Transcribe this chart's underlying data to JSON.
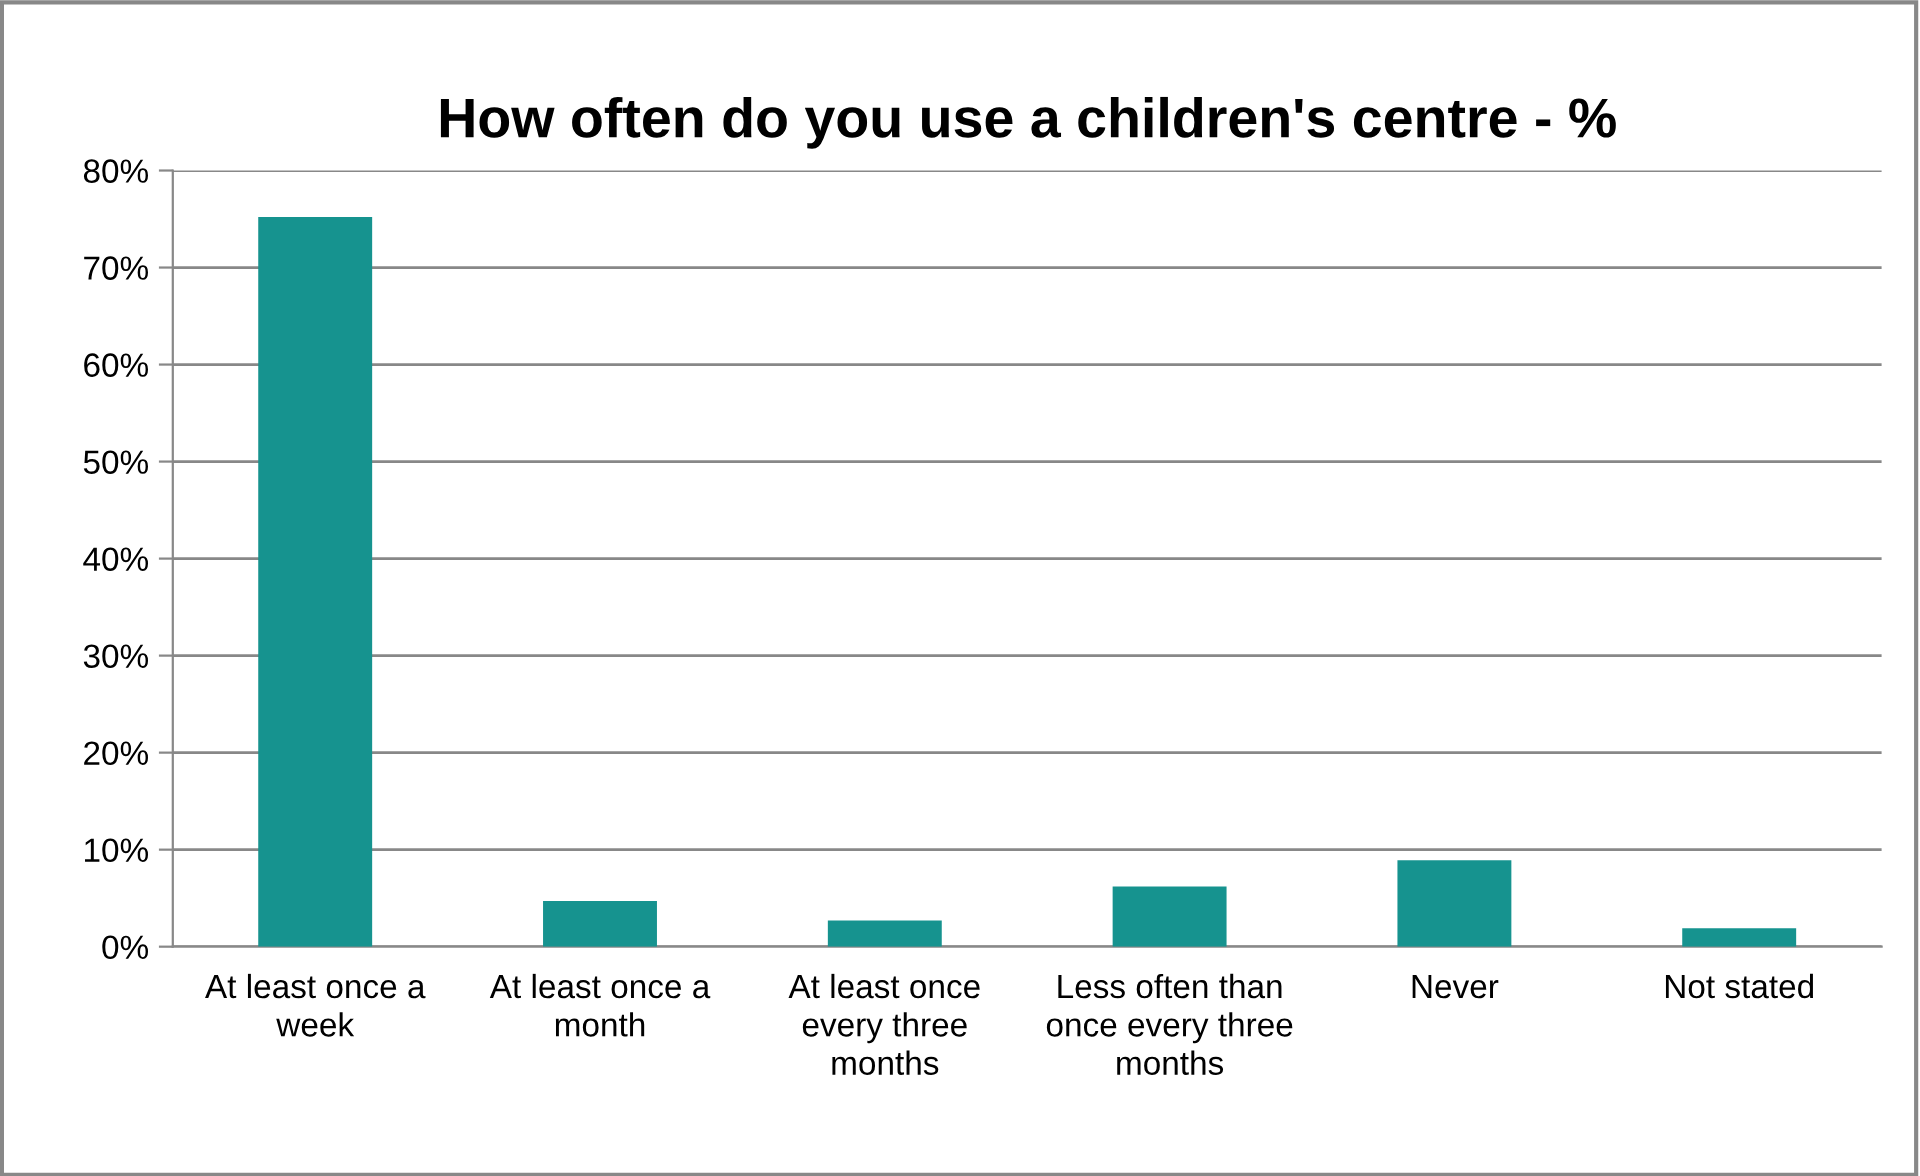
{
  "chart_data": {
    "type": "bar",
    "title": "How often do you use a children's centre - %",
    "categories": [
      "At least once a week",
      "At least once a month",
      "At least once every three months",
      "Less often than once every three months",
      "Never",
      "Not stated"
    ],
    "values": [
      75.2,
      4.7,
      2.7,
      6.2,
      8.9,
      1.9
    ],
    "color": "#16938f",
    "ylim": [
      0,
      80
    ],
    "yticks": [
      {
        "value": 0,
        "label": "0%"
      },
      {
        "value": 10,
        "label": "10%"
      },
      {
        "value": 20,
        "label": "20%"
      },
      {
        "value": 30,
        "label": "30%"
      },
      {
        "value": 40,
        "label": "40%"
      },
      {
        "value": 50,
        "label": "50%"
      },
      {
        "value": 60,
        "label": "60%"
      },
      {
        "value": 70,
        "label": "70%"
      },
      {
        "value": 80,
        "label": "80%"
      }
    ],
    "grid": "y",
    "legend": false
  }
}
